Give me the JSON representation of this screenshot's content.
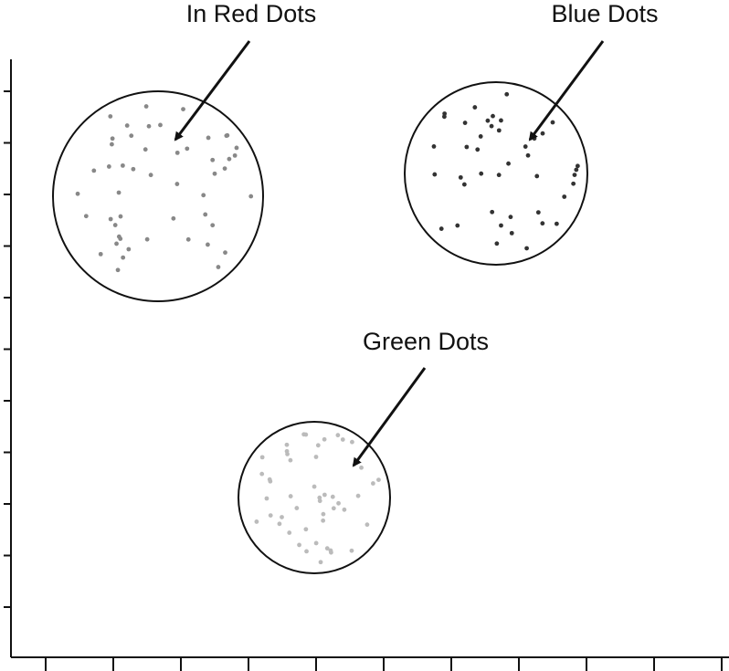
{
  "annotations": [
    {
      "label": "In Red Dots"
    },
    {
      "label": "Blue Dots"
    },
    {
      "label": "Green Dots"
    }
  ]
}
